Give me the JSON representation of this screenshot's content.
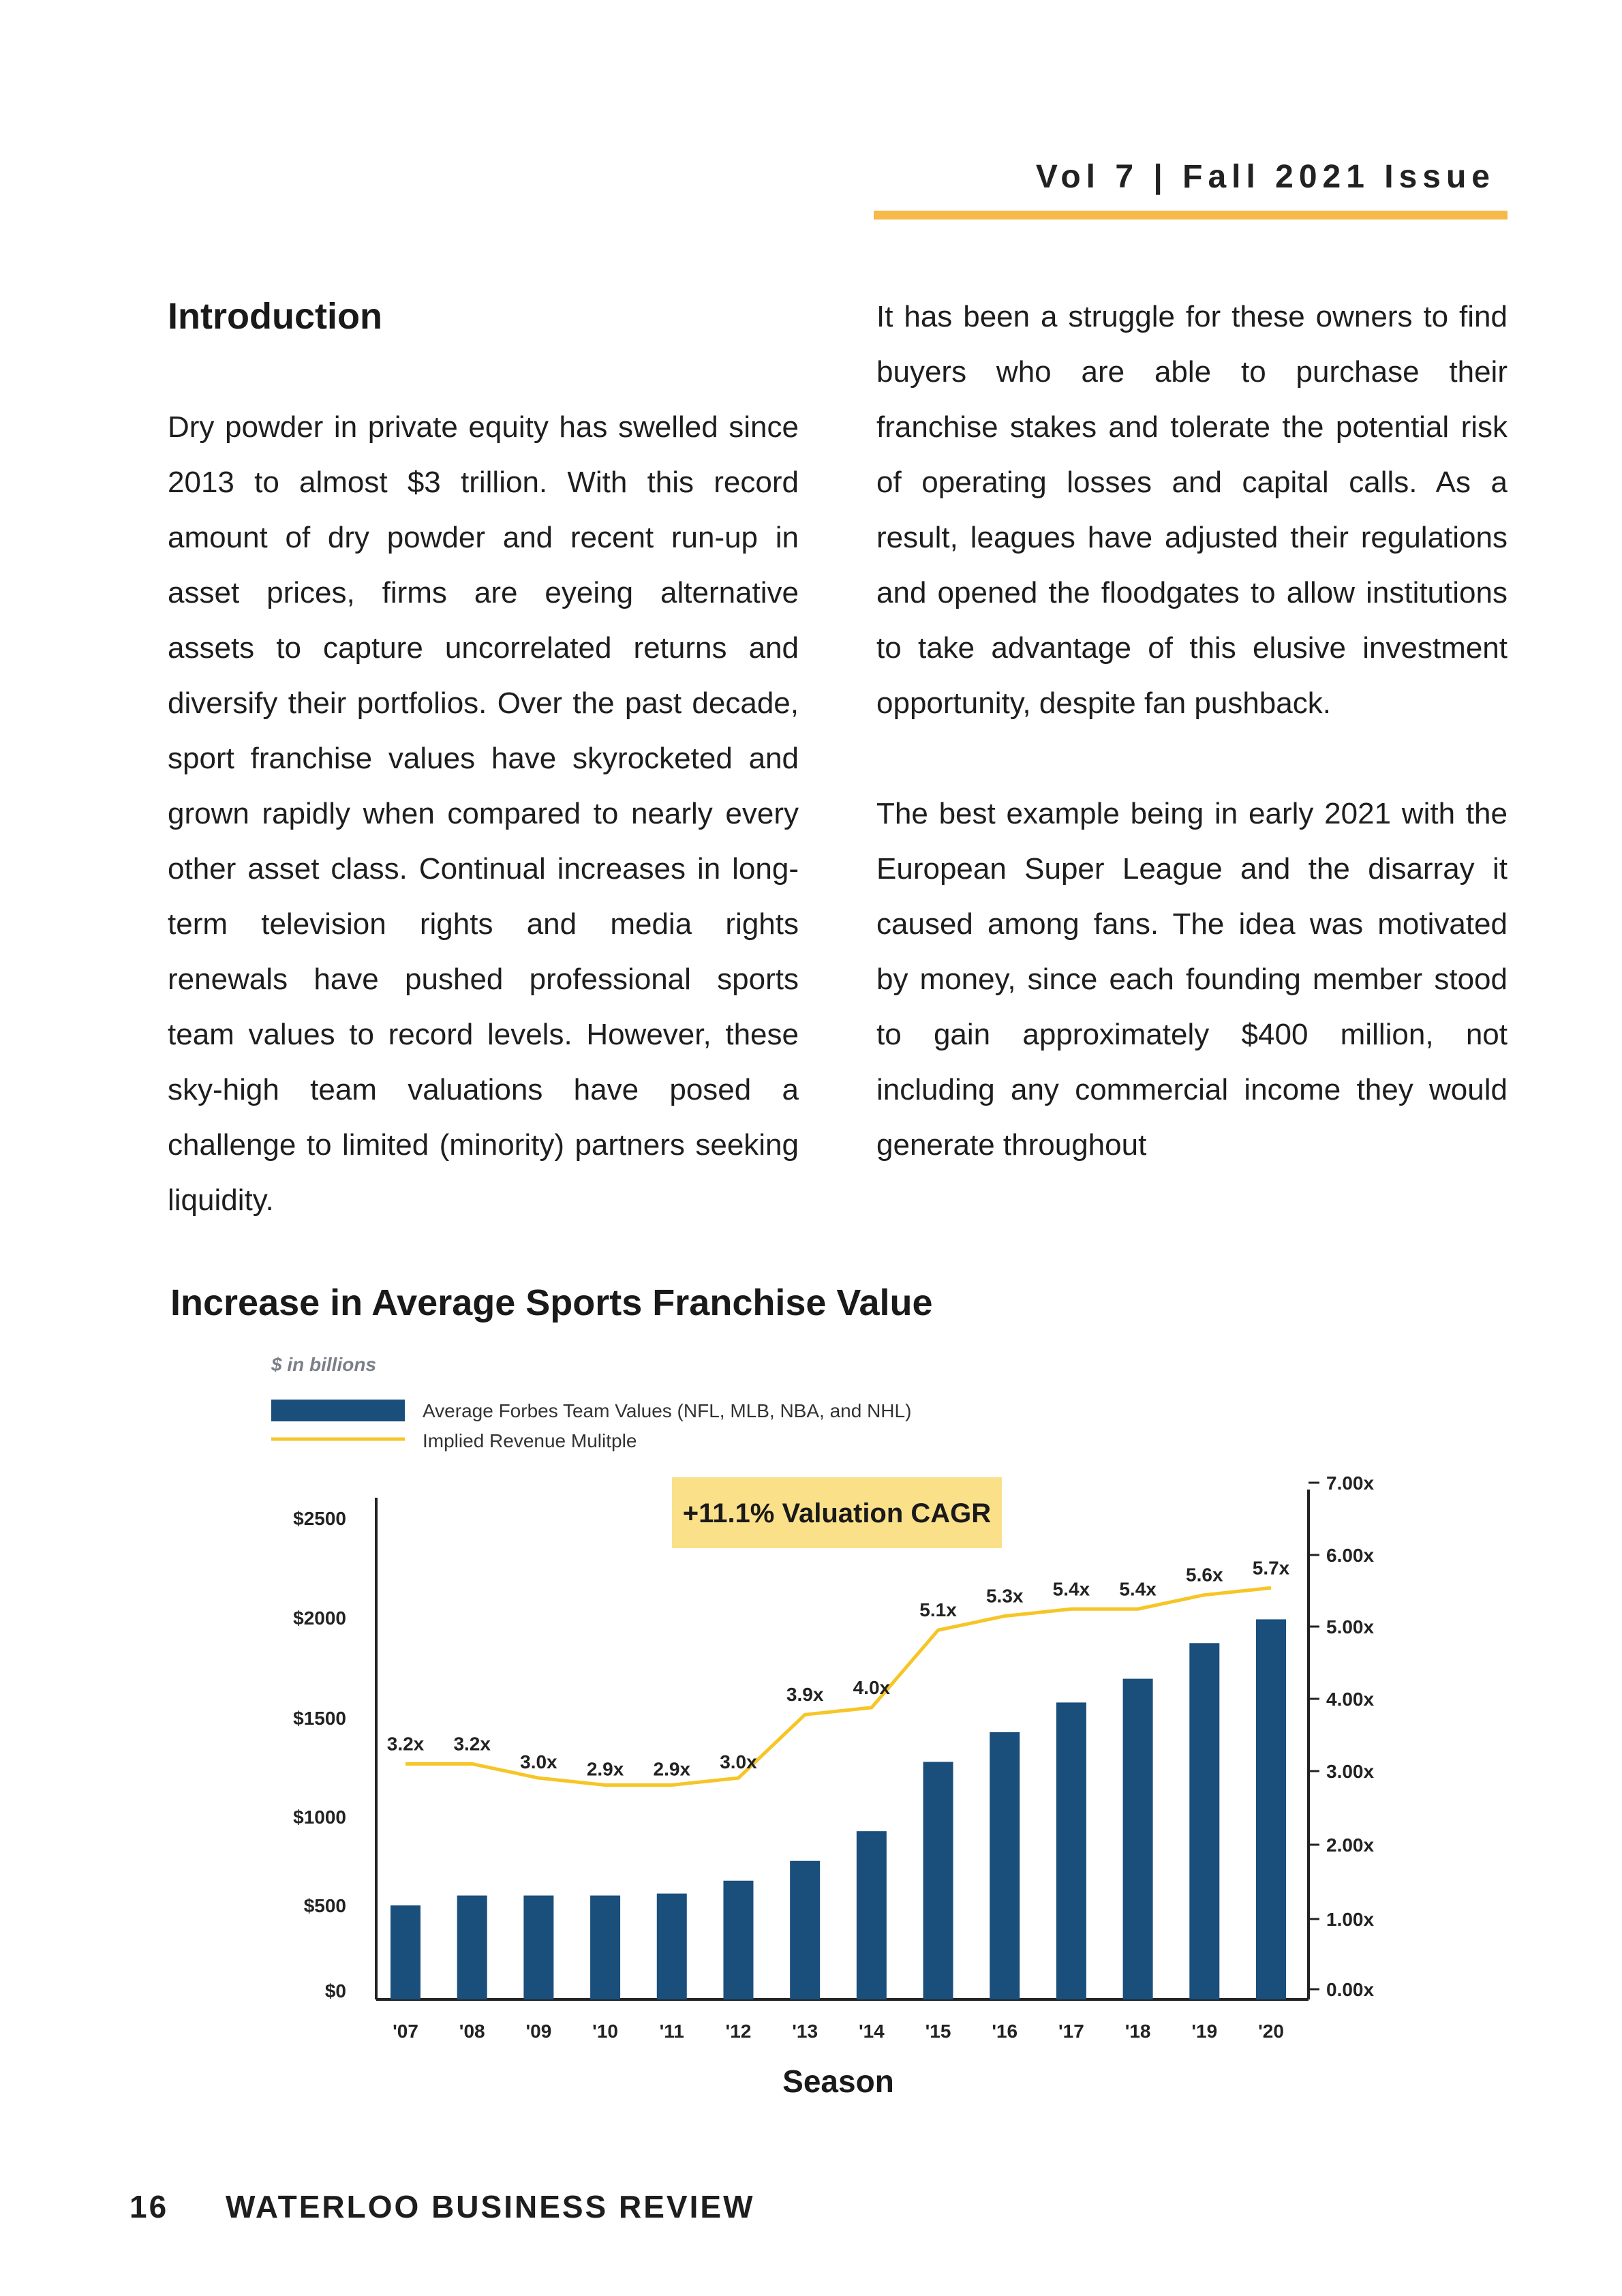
{
  "header": {
    "issue": "Vol 7 | Fall 2021 Issue"
  },
  "article": {
    "heading": "Introduction",
    "left_paragraph": "Dry powder in private equity has swelled since 2013 to almost $3 trillion. With this record amount of dry powder and recent run-up in asset prices, firms are eyeing alternative assets to capture uncorrelated returns and diversify their portfolios. Over the past decade, sport franchise values have skyrocketed and grown rapidly when compared to nearly every other asset class. Continual increases in long-term television rights and media rights renewals have pushed professional sports team values to record levels. However, these sky-high team valuations have posed a challenge to limited (minority) partners seeking liquidity.",
    "right_paragraph_1": "It has been a struggle for these owners to find buyers who are able to purchase their franchise stakes and tolerate the potential risk of operating losses and capital calls. As a result, leagues have adjusted their regulations and opened the floodgates to allow institutions to take advantage of this elusive investment opportunity, despite fan pushback.",
    "right_paragraph_2": "The best example being in early 2021 with the European Super League and the disarray it caused among fans. The idea was motivated by money, since each founding member stood to gain approximately $400 million, not including any commercial income they would generate throughout"
  },
  "chart_data": {
    "type": "bar",
    "title": "Increase in Average Sports Franchise Value",
    "unit_note": "$ in billions",
    "xlabel": "Season",
    "callout": "+11.1% Valuation CAGR",
    "categories": [
      "'07",
      "'08",
      "'09",
      "'10",
      "'11",
      "'12",
      "'13",
      "'14",
      "'15",
      "'16",
      "'17",
      "'18",
      "'19",
      "'20"
    ],
    "y_left_ticks": [
      "$0",
      "$500",
      "$1000",
      "$1500",
      "$2000",
      "$2500"
    ],
    "y_left_lim": [
      0,
      2500
    ],
    "y_right_ticks": [
      "0.00x",
      "1.00x",
      "2.00x",
      "3.00x",
      "4.00x",
      "5.00x",
      "6.00x",
      "7.00x"
    ],
    "y_right_lim": [
      0,
      7
    ],
    "series": [
      {
        "name": "Average Forbes Team Values (NFL, MLB, NBA, and NHL)",
        "kind": "bar",
        "axis": "left",
        "color": "#1a4e7b",
        "values": [
          475,
          525,
          525,
          525,
          535,
          600,
          700,
          850,
          1200,
          1350,
          1500,
          1620,
          1800,
          1920
        ]
      },
      {
        "name": "Implied Revenue Mulitple",
        "kind": "line",
        "axis": "right",
        "color": "#f6c526",
        "values": [
          3.2,
          3.2,
          3.0,
          2.9,
          2.9,
          3.0,
          3.9,
          4.0,
          5.1,
          5.3,
          5.4,
          5.4,
          5.6,
          5.7
        ],
        "labels": [
          "3.2x",
          "3.2x",
          "3.0x",
          "2.9x",
          "2.9x",
          "3.0x",
          "3.9x",
          "4.0x",
          "5.1x",
          "5.3x",
          "5.4x",
          "5.4x",
          "5.6x",
          "5.7x"
        ]
      }
    ],
    "colors": {
      "bar": "#1a4e7b",
      "line": "#f6c526",
      "callout_bg": "#fbe08a"
    }
  },
  "footer": {
    "page_number": "16",
    "publication": "WATERLOO BUSINESS REVIEW"
  }
}
